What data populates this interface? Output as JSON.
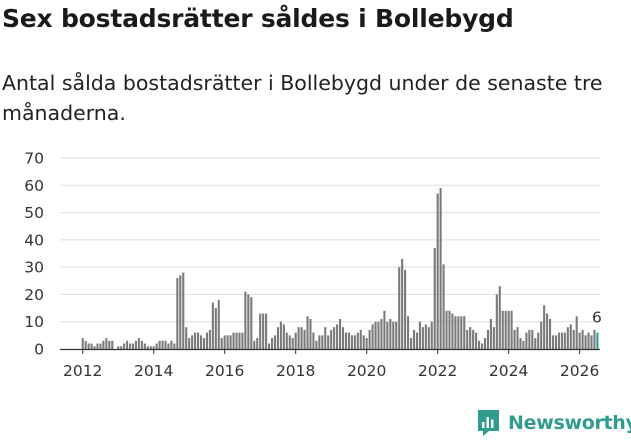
{
  "page": {
    "title": "Sex bostadsrätter såldes i Bollebygd",
    "subtitle": "Antal sålda bostadsrätter i Bollebygd under de senaste tre månaderna."
  },
  "brand": {
    "name": "Newsworthy",
    "icon": "newsworthy-logo-icon",
    "color": "#2f9c8f"
  },
  "colors": {
    "bars": "#7a7a7c",
    "highlight": "#2f9c8f",
    "grid": "#dddddd",
    "axis": "#333333"
  },
  "chart_data": {
    "type": "bar",
    "title": "Sex bostadsrätter såldes i Bollebygd",
    "xlabel": "",
    "ylabel": "",
    "ylim": [
      0,
      70
    ],
    "yticks": [
      0,
      10,
      20,
      30,
      40,
      50,
      60,
      70
    ],
    "xticks": [
      "2012",
      "2014",
      "2016",
      "2018",
      "2020",
      "2022",
      "2024",
      "2026"
    ],
    "grid": "horizontal",
    "start": "2012-01",
    "period": "month",
    "highlight_label": "6",
    "values": [
      4,
      3,
      2,
      2,
      1,
      2,
      2,
      3,
      4,
      3,
      3,
      0,
      1,
      1,
      2,
      3,
      2,
      2,
      3,
      4,
      3,
      2,
      1,
      1,
      1,
      2,
      3,
      3,
      3,
      2,
      3,
      2,
      26,
      27,
      28,
      8,
      4,
      5,
      6,
      6,
      5,
      4,
      6,
      7,
      17,
      15,
      18,
      4,
      5,
      5,
      5,
      6,
      6,
      6,
      6,
      21,
      20,
      19,
      3,
      4,
      13,
      13,
      13,
      2,
      4,
      5,
      8,
      10,
      9,
      6,
      5,
      4,
      6,
      8,
      8,
      7,
      12,
      11,
      6,
      3,
      5,
      5,
      8,
      5,
      7,
      8,
      9,
      11,
      8,
      6,
      6,
      5,
      5,
      6,
      7,
      5,
      4,
      7,
      9,
      10,
      10,
      11,
      14,
      10,
      11,
      10,
      10,
      30,
      33,
      29,
      12,
      4,
      7,
      6,
      10,
      8,
      9,
      8,
      10,
      37,
      57,
      59,
      31,
      14,
      14,
      13,
      12,
      12,
      12,
      12,
      7,
      8,
      7,
      6,
      3,
      2,
      4,
      7,
      11,
      8,
      20,
      23,
      14,
      14,
      14,
      14,
      7,
      8,
      4,
      3,
      6,
      7,
      7,
      4,
      6,
      10,
      16,
      13,
      11,
      5,
      5,
      6,
      6,
      6,
      8,
      9,
      7,
      12,
      6,
      7,
      5,
      6,
      5,
      7,
      6
    ]
  }
}
